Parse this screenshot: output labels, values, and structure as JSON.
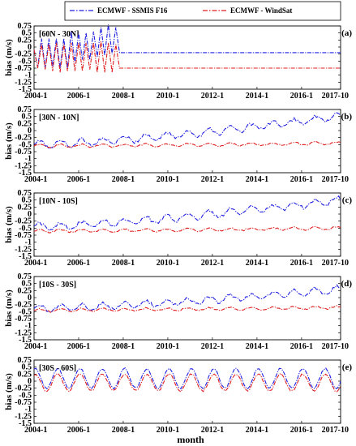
{
  "chart_data": {
    "type": "line",
    "xlabel": "month",
    "ylabel": "bias (m/s)",
    "legend_position": "top",
    "grid": false,
    "x_ticks": [
      "2004-1",
      "2006-1",
      "2008-1",
      "2010-1",
      "2012-1",
      "2014-1",
      "2016-1",
      "2017-10"
    ],
    "y_ticks": [
      "0.75",
      "0.5",
      "0.25",
      "0",
      "-0.25",
      "-0.5",
      "-0.75",
      "-1",
      "-1.25",
      "-1.5"
    ],
    "xlim": [
      "2004-01",
      "2017-10"
    ],
    "ylim": [
      -1.5,
      0.75
    ],
    "series_styles": [
      {
        "name": "ECMWF - SSMIS F16",
        "color": "#1f1fe0",
        "dash": "dash-dot"
      },
      {
        "name": "ECMWF - WindSat",
        "color": "#e01f1f",
        "dash": "dash-dot"
      }
    ],
    "panels": [
      {
        "id": "a",
        "tag": "(a)",
        "region": "[60N - 30N]",
        "series": [
          {
            "name": "ECMWF - SSMIS F16",
            "values_every_2_months": [
              -0.1,
              -0.7,
              0.3,
              -0.75,
              0.3,
              -0.7,
              0.3,
              -0.75,
              0.3,
              -0.75,
              0.55,
              -0.55,
              0.5,
              -0.45,
              0.5,
              -0.45,
              0.55,
              -0.35,
              0.7,
              -0.3,
              0.8,
              -0.25,
              0.7,
              -0.2
            ]
          },
          {
            "name": "ECMWF - WindSat",
            "values_every_2_months": [
              -0.1,
              -0.75,
              0.1,
              -0.8,
              0.1,
              -0.85,
              0.15,
              -0.9,
              0.1,
              -0.85,
              0.15,
              -0.85,
              0.15,
              -0.85,
              0.15,
              -0.8,
              0.15,
              -0.9,
              0.2,
              -0.9,
              0.15,
              -0.9,
              0.1,
              -0.75
            ]
          }
        ]
      },
      {
        "id": "b",
        "tag": "(b)",
        "region": "[30N - 10N]",
        "series": [
          {
            "name": "ECMWF - SSMIS F16",
            "monthly_trend_start_end": [
              -0.5,
              0.5
            ]
          },
          {
            "name": "ECMWF - WindSat",
            "monthly_trend_start_end": [
              -0.55,
              -0.45
            ]
          }
        ]
      },
      {
        "id": "c",
        "tag": "(c)",
        "region": "[10N - 10S]",
        "series": [
          {
            "name": "ECMWF - SSMIS F16",
            "monthly_trend_start_end": [
              -0.45,
              0.5
            ]
          },
          {
            "name": "ECMWF - WindSat",
            "monthly_trend_start_end": [
              -0.6,
              -0.5
            ]
          }
        ]
      },
      {
        "id": "d",
        "tag": "(d)",
        "region": "[10S - 30S]",
        "series": [
          {
            "name": "ECMWF - SSMIS F16",
            "monthly_trend_start_end": [
              -0.4,
              0.3
            ]
          },
          {
            "name": "ECMWF - WindSat",
            "monthly_trend_start_end": [
              -0.45,
              -0.35
            ]
          }
        ]
      },
      {
        "id": "e",
        "tag": "(e)",
        "region": "[30S - 60S]",
        "series": [
          {
            "name": "ECMWF - SSMIS F16",
            "seasonal_mean_amplitude": [
              0.1,
              0.35
            ]
          },
          {
            "name": "ECMWF - WindSat",
            "seasonal_mean_amplitude": [
              -0.05,
              0.3
            ]
          }
        ]
      }
    ]
  }
}
